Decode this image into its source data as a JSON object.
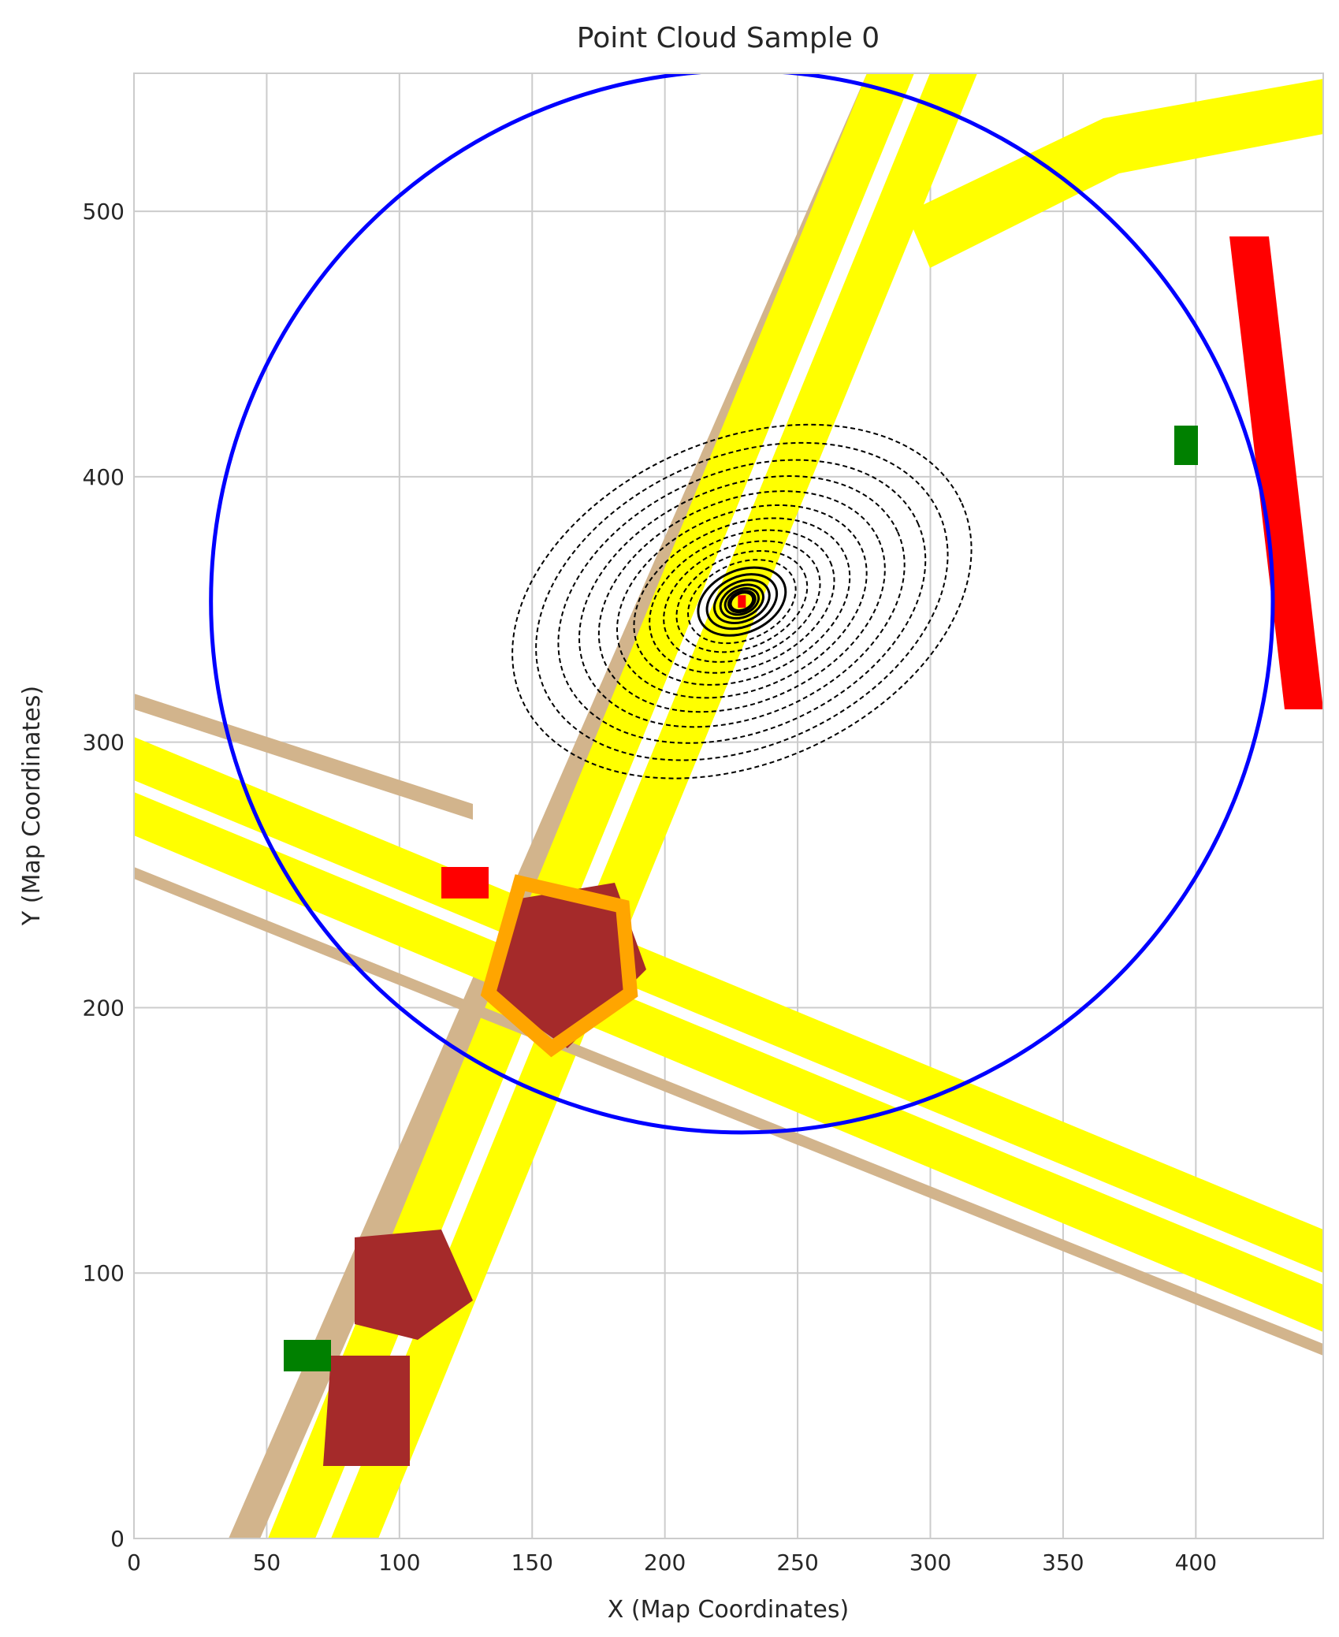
{
  "chart_data": {
    "type": "scatter",
    "title": "Point Cloud Sample 0",
    "xlabel": "X (Map Coordinates)",
    "ylabel": "Y (Map Coordinates)",
    "xlim": [
      0,
      448
    ],
    "ylim": [
      0,
      552
    ],
    "xticks": [
      0,
      50,
      100,
      150,
      200,
      250,
      300,
      350,
      400
    ],
    "yticks": [
      0,
      100,
      200,
      300,
      400,
      500
    ],
    "grid": true,
    "map_layer_colors": {
      "road": "#ffff00",
      "sidewalk": "#d2b48c",
      "intersection": "#a52a2a",
      "crossing": "#ff0000",
      "turn_lane": "#ffa500",
      "vegetation": "#008000"
    },
    "point_color": "#000000",
    "ego_marker_color": "#ff0000",
    "range_circle": {
      "center": [
        229,
        353
      ],
      "radius": 200,
      "color": "#0000ff"
    }
  }
}
